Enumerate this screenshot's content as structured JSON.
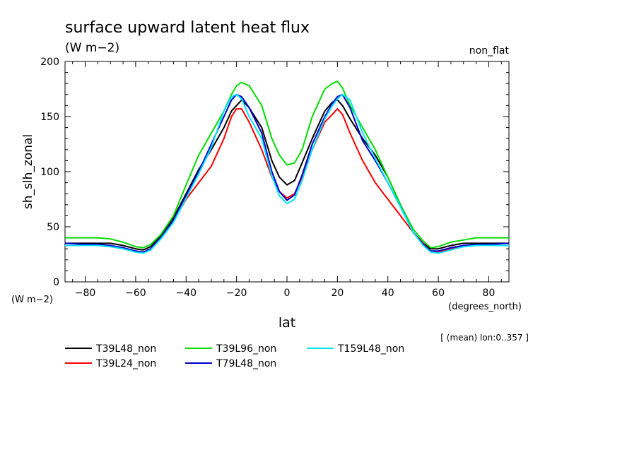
{
  "chart_data": {
    "type": "line",
    "title": "surface upward latent heat flux",
    "units": "(W m−2)",
    "top_right_label": "non_flat",
    "ylabel": "sh_slh_zonal",
    "y_unit_label": "(W m−2)",
    "xlabel": "lat",
    "x_unit_label": "(degrees_north)",
    "note": "[ (mean) lon:0..357 ]",
    "xlim": [
      -88,
      88
    ],
    "ylim": [
      0,
      200
    ],
    "x_ticks": [
      -80,
      -60,
      -40,
      -20,
      0,
      20,
      40,
      60,
      80
    ],
    "y_ticks": [
      0,
      50,
      100,
      150,
      200
    ],
    "x": [
      -88,
      -80,
      -75,
      -70,
      -65,
      -60,
      -57,
      -54,
      -50,
      -45,
      -40,
      -35,
      -30,
      -25,
      -22,
      -20,
      -18,
      -15,
      -10,
      -6,
      -3,
      0,
      3,
      6,
      10,
      15,
      18,
      20,
      22,
      25,
      30,
      35,
      40,
      45,
      50,
      54,
      57,
      60,
      65,
      70,
      75,
      80,
      88
    ],
    "series": [
      {
        "name": "T39L48_non",
        "color": "#000000",
        "values": [
          35,
          35,
          35,
          35,
          33,
          30,
          29,
          32,
          42,
          58,
          80,
          102,
          120,
          140,
          155,
          160,
          165,
          158,
          140,
          110,
          95,
          88,
          92,
          108,
          130,
          155,
          163,
          165,
          160,
          148,
          130,
          115,
          95,
          70,
          45,
          35,
          30,
          30,
          33,
          35,
          35,
          35,
          35
        ]
      },
      {
        "name": "T39L24_non",
        "color": "#ff0000",
        "values": [
          33,
          33,
          33,
          32,
          30,
          28,
          27,
          30,
          40,
          55,
          75,
          90,
          105,
          130,
          150,
          157,
          157,
          145,
          120,
          95,
          82,
          76,
          80,
          95,
          120,
          145,
          152,
          157,
          152,
          135,
          110,
          90,
          75,
          60,
          45,
          35,
          28,
          27,
          30,
          32,
          33,
          33,
          33
        ]
      },
      {
        "name": "T39L96_non",
        "color": "#00dd00",
        "values": [
          40,
          40,
          40,
          39,
          36,
          32,
          31,
          34,
          43,
          60,
          88,
          115,
          135,
          155,
          170,
          178,
          181,
          178,
          160,
          130,
          115,
          106,
          108,
          120,
          150,
          175,
          180,
          182,
          176,
          160,
          140,
          120,
          95,
          70,
          48,
          37,
          31,
          32,
          36,
          38,
          40,
          40,
          40
        ]
      },
      {
        "name": "T79L48_non",
        "color": "#0000cc",
        "values": [
          35,
          34,
          34,
          33,
          31,
          28,
          27,
          30,
          40,
          56,
          78,
          100,
          125,
          150,
          165,
          170,
          168,
          158,
          135,
          100,
          82,
          74,
          79,
          97,
          125,
          150,
          162,
          168,
          170,
          158,
          128,
          110,
          90,
          68,
          45,
          34,
          28,
          28,
          31,
          33,
          34,
          34,
          35
        ]
      },
      {
        "name": "T159L48_non",
        "color": "#00e5ff",
        "values": [
          33,
          33,
          33,
          32,
          30,
          27,
          26,
          29,
          39,
          54,
          76,
          98,
          122,
          155,
          168,
          170,
          166,
          150,
          130,
          96,
          78,
          71,
          75,
          92,
          120,
          148,
          160,
          166,
          170,
          165,
          135,
          112,
          90,
          68,
          45,
          33,
          27,
          26,
          29,
          32,
          33,
          33,
          33
        ]
      }
    ],
    "legend_placement": "bottom-left"
  }
}
